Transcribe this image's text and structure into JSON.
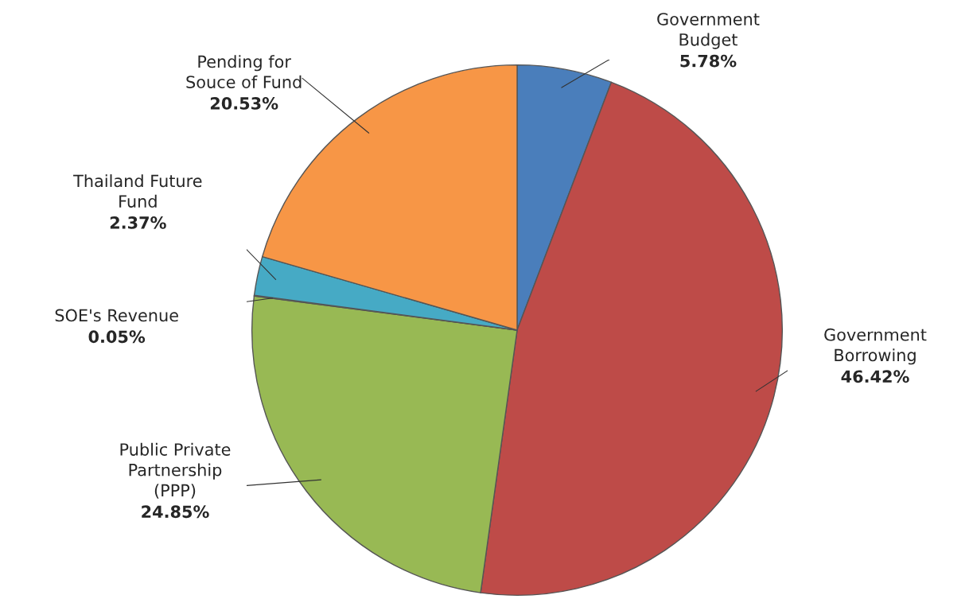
{
  "chart_data": {
    "type": "pie",
    "categories": [
      "Government\nBudget",
      "Government\nBorrowing",
      "Public Private\nPartnership\n(PPP)",
      "SOE's Revenue",
      "Thailand Future\nFund",
      "Pending for\nSouce of Fund"
    ],
    "values": [
      5.78,
      46.42,
      24.85,
      0.05,
      2.37,
      20.53
    ],
    "value_labels": [
      "5.78%",
      "46.42%",
      "24.85%",
      "0.05%",
      "2.37%",
      "20.53%"
    ],
    "colors": [
      "#4a7ebb",
      "#be4b48",
      "#98b954",
      "#7d60a0",
      "#46aac5",
      "#f79646"
    ]
  }
}
